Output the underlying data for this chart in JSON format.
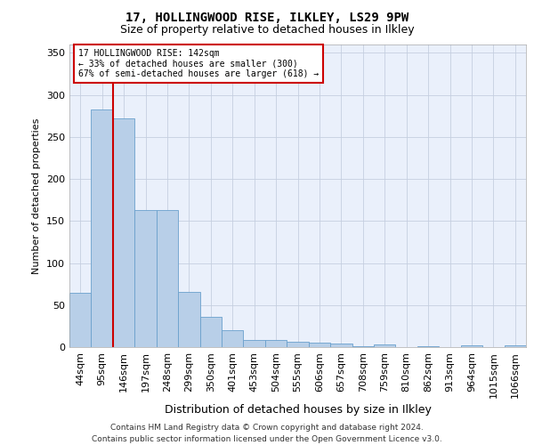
{
  "title1": "17, HOLLINGWOOD RISE, ILKLEY, LS29 9PW",
  "title2": "Size of property relative to detached houses in Ilkley",
  "xlabel": "Distribution of detached houses by size in Ilkley",
  "ylabel": "Number of detached properties",
  "footer1": "Contains HM Land Registry data © Crown copyright and database right 2024.",
  "footer2": "Contains public sector information licensed under the Open Government Licence v3.0.",
  "categories": [
    "44sqm",
    "95sqm",
    "146sqm",
    "197sqm",
    "248sqm",
    "299sqm",
    "350sqm",
    "401sqm",
    "453sqm",
    "504sqm",
    "555sqm",
    "606sqm",
    "657sqm",
    "708sqm",
    "759sqm",
    "810sqm",
    "862sqm",
    "913sqm",
    "964sqm",
    "1015sqm",
    "1066sqm"
  ],
  "values": [
    65,
    283,
    272,
    163,
    163,
    66,
    36,
    20,
    9,
    9,
    6,
    5,
    4,
    1,
    3,
    0,
    1,
    0,
    2,
    0,
    2
  ],
  "bar_color": "#b8cfe8",
  "bar_edge_color": "#6aa0cc",
  "vline_x": 1.5,
  "vline_color": "#cc0000",
  "annotation_line1": "17 HOLLINGWOOD RISE: 142sqm",
  "annotation_line2": "← 33% of detached houses are smaller (300)",
  "annotation_line3": "67% of semi-detached houses are larger (618) →",
  "ylim": [
    0,
    360
  ],
  "yticks": [
    0,
    50,
    100,
    150,
    200,
    250,
    300,
    350
  ],
  "background_color": "#eaf0fb",
  "grid_color": "#c5cfe0",
  "title1_fontsize": 10,
  "title2_fontsize": 9,
  "xlabel_fontsize": 9,
  "ylabel_fontsize": 8,
  "tick_fontsize": 7,
  "footer_fontsize": 6.5
}
